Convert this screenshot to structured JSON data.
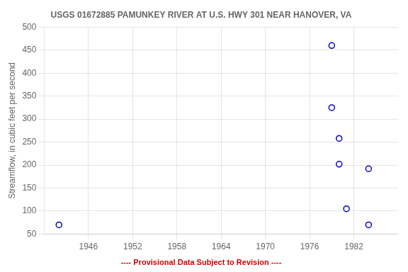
{
  "chart_data": {
    "type": "scatter",
    "title": "USGS 01672885 PAMUNKEY RIVER AT U.S. HWY 301 NEAR HANOVER, VA",
    "ylabel": "Streamflow, in cubic feet per second",
    "x": [
      1942,
      1979,
      1979,
      1980,
      1980,
      1981,
      1984,
      1984
    ],
    "values": [
      70,
      460,
      325,
      258,
      202,
      105,
      192,
      70
    ],
    "color": "#0000cc",
    "marker": "circle",
    "xlim": [
      1940,
      1988
    ],
    "xticks": [
      1946,
      1952,
      1958,
      1964,
      1970,
      1976,
      1982
    ],
    "ylim": [
      50,
      500
    ],
    "yticks": [
      50,
      100,
      150,
      200,
      250,
      300,
      350,
      400,
      450,
      500
    ],
    "grid": true,
    "annotations": [
      {
        "text": "---- Provisional Data Subject to Revision ----",
        "color": "#cc0000"
      }
    ]
  }
}
